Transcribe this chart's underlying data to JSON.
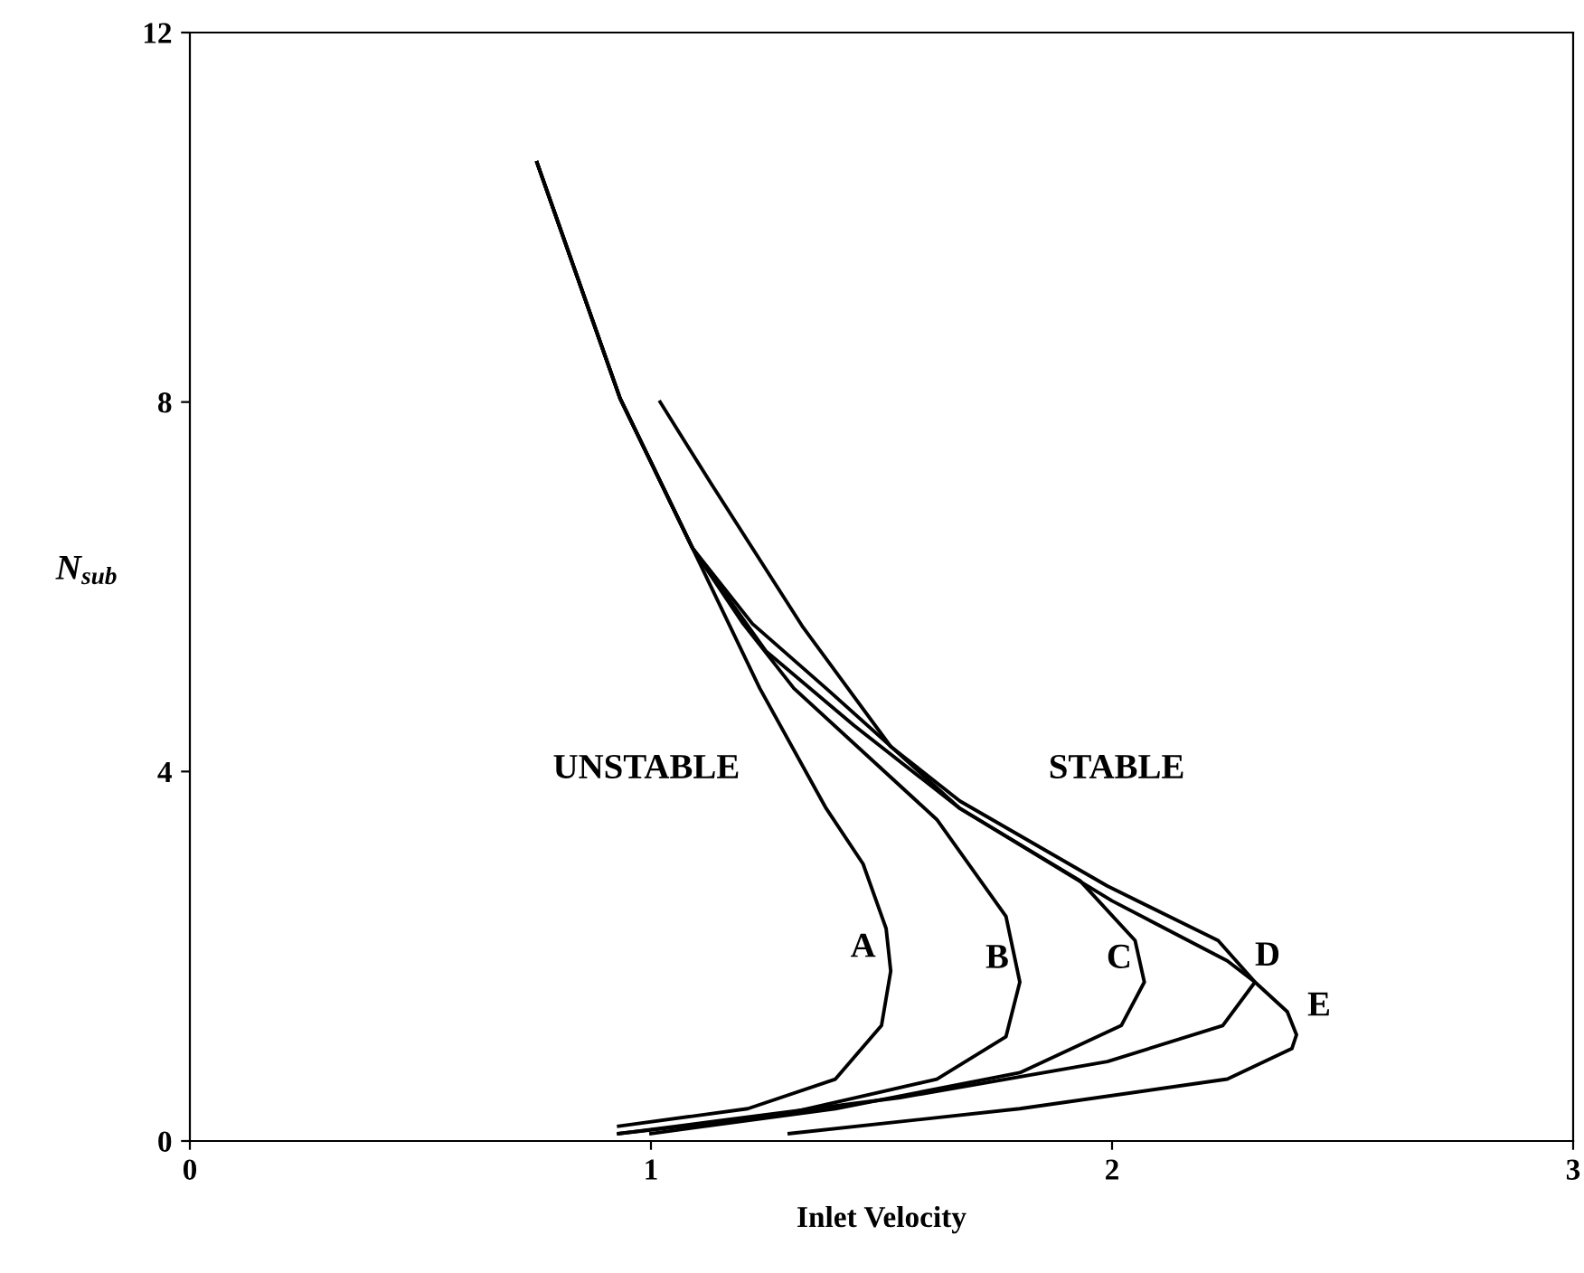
{
  "chart_data": {
    "type": "line",
    "xlabel": "Inlet Velocity",
    "ylabel": "N$_{sub}$",
    "xlim": [
      0,
      3
    ],
    "ylim": [
      0,
      12
    ],
    "xticks": [
      0,
      1,
      2,
      3
    ],
    "yticks": [
      0,
      4,
      8,
      12
    ],
    "grid": false,
    "legend": false,
    "marker": "none",
    "line_style": "solid",
    "series": [
      {
        "name": "A",
        "color": "#000000",
        "x": [
          0.753,
          0.933,
          1.09,
          1.236,
          1.38,
          1.46,
          1.51,
          1.52,
          1.5,
          1.4,
          1.21,
          0.93
        ],
        "values": [
          10.59,
          8.04,
          6.42,
          4.9,
          3.6,
          3.0,
          2.3,
          1.84,
          1.25,
          0.67,
          0.35,
          0.16
        ]
      },
      {
        "name": "B",
        "color": "#000000",
        "x": [
          0.753,
          0.933,
          1.09,
          1.2,
          1.31,
          1.62,
          1.77,
          1.8,
          1.77,
          1.62,
          1.27,
          0.93
        ],
        "values": [
          10.59,
          8.04,
          6.42,
          5.6,
          4.9,
          3.48,
          2.43,
          1.72,
          1.13,
          0.67,
          0.27,
          0.08
        ]
      },
      {
        "name": "C",
        "color": "#000000",
        "x": [
          0.753,
          0.933,
          1.09,
          1.22,
          1.38,
          1.67,
          1.93,
          2.05,
          2.07,
          2.02,
          1.8,
          1.4,
          1.0
        ],
        "values": [
          10.59,
          8.04,
          6.42,
          5.6,
          4.9,
          3.6,
          2.82,
          2.17,
          1.72,
          1.25,
          0.74,
          0.35,
          0.08
        ]
      },
      {
        "name": "D",
        "color": "#000000",
        "x": [
          1.02,
          1.13,
          1.33,
          1.52,
          1.67,
          1.99,
          2.23,
          2.31,
          2.24,
          1.99,
          1.54,
          1.15,
          0.93
        ],
        "values": [
          8.0,
          7.12,
          5.56,
          4.27,
          3.68,
          2.76,
          2.17,
          1.72,
          1.25,
          0.86,
          0.47,
          0.22,
          0.08
        ]
      },
      {
        "name": "E",
        "color": "#000000",
        "x": [
          0.753,
          0.933,
          1.09,
          1.25,
          1.44,
          1.67,
          2.0,
          2.25,
          2.31,
          2.38,
          2.4,
          2.39,
          2.25,
          1.8,
          1.3
        ],
        "values": [
          10.59,
          8.04,
          6.42,
          5.3,
          4.5,
          3.6,
          2.6,
          1.95,
          1.72,
          1.4,
          1.15,
          1.0,
          0.67,
          0.35,
          0.08
        ]
      }
    ],
    "annotations": [
      "UNSTABLE",
      "STABLE"
    ]
  }
}
